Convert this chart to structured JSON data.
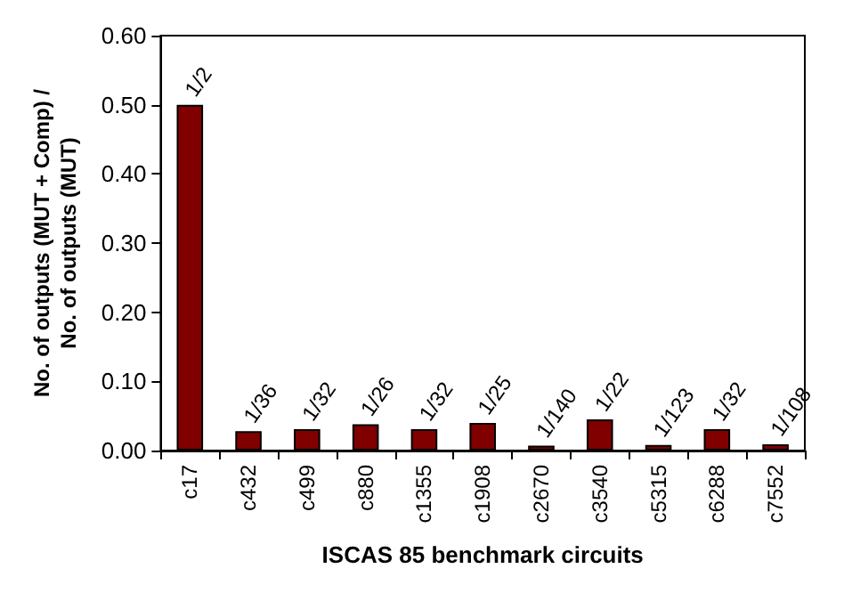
{
  "chart_data": {
    "type": "bar",
    "xlabel": "ISCAS 85 benchmark circuits",
    "ylabel": "No. of outputs (MUT + Comp) / No. of outputs (MUT)",
    "categories": [
      "c17",
      "c432",
      "c499",
      "c880",
      "c1355",
      "c1908",
      "c2670",
      "c3540",
      "c5315",
      "c6288",
      "c7552"
    ],
    "series": [
      {
        "color": "#800000",
        "values": [
          0.5,
          0.028,
          0.031,
          0.038,
          0.031,
          0.04,
          0.007,
          0.045,
          0.008,
          0.031,
          0.009
        ],
        "value_labels": [
          "1/2",
          "1/36",
          "1/32",
          "1/26",
          "1/32",
          "1/25",
          "1/140",
          "1/22",
          "1/123",
          "1/32",
          "1/108"
        ]
      }
    ],
    "ylim": [
      0,
      0.6
    ],
    "yticks": [
      {
        "value": 0,
        "label": "0.00"
      },
      {
        "value": 0.1,
        "label": "0.10"
      },
      {
        "value": 0.2,
        "label": "0.20"
      },
      {
        "value": 0.3,
        "label": "0.30"
      },
      {
        "value": 0.4,
        "label": "0.40"
      },
      {
        "value": 0.5,
        "label": "0.50"
      },
      {
        "value": 0.6,
        "label": "0.60"
      }
    ],
    "grid": false
  }
}
